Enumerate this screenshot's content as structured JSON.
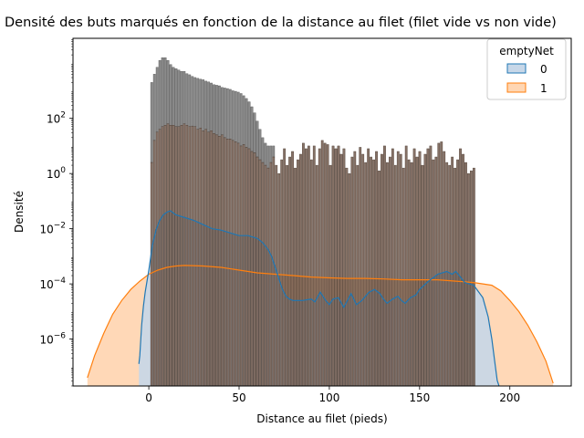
{
  "chart_data": {
    "type": "histogram_kde",
    "title": "Densité des buts marqués en fonction de la distance au filet (filet vide vs non vide)",
    "xlabel": "Distance au filet (pieds)",
    "ylabel": "Densité",
    "y_scale": "log",
    "xlim": [
      -42,
      234
    ],
    "ylim_log10": [
      -7.7,
      4.9
    ],
    "x_ticks": [
      0,
      50,
      100,
      150,
      200
    ],
    "y_ticks": [
      {
        "label": "10",
        "exp": "2",
        "value": 100
      },
      {
        "label": "10",
        "exp": "0",
        "value": 1
      },
      {
        "label": "10",
        "exp": "−2",
        "value": 0.01
      },
      {
        "label": "10",
        "exp": "−4",
        "value": 0.0001
      },
      {
        "label": "10",
        "exp": "−6",
        "value": 1e-06
      }
    ],
    "legend": {
      "title": "emptyNet",
      "placement": "upper right",
      "entries": [
        "0",
        "1"
      ]
    },
    "colors": {
      "series0_fill": "#c7d7e8",
      "series0_line": "#1f77b4",
      "series1_fill": "#ffd6b3",
      "series1_line": "#ff7f0e",
      "hist_combined": "#6b5345",
      "hist_gray": "#8a8a8a"
    },
    "histogram": {
      "bin_start": 1,
      "bin_width": 1.5,
      "emptyNet0_log10": [
        3.3,
        3.6,
        3.85,
        4.1,
        4.2,
        4.2,
        4.1,
        3.95,
        3.85,
        3.8,
        3.75,
        3.7,
        3.7,
        3.62,
        3.58,
        3.52,
        3.48,
        3.45,
        3.42,
        3.4,
        3.35,
        3.32,
        3.28,
        3.22,
        3.2,
        3.18,
        3.12,
        3.1,
        3.08,
        3.05,
        3.0,
        2.98,
        2.95,
        2.9,
        2.82,
        2.72,
        2.6,
        2.42,
        2.2,
        1.9,
        1.6,
        1.3,
        1.1,
        1.0,
        1.0,
        1.0
      ],
      "emptyNet1_log10": [
        0.4,
        1.2,
        1.5,
        1.6,
        1.7,
        1.75,
        1.8,
        1.75,
        1.75,
        1.7,
        1.7,
        1.75,
        1.8,
        1.75,
        1.7,
        1.72,
        1.7,
        1.6,
        1.65,
        1.55,
        1.6,
        1.5,
        1.55,
        1.45,
        1.4,
        1.35,
        1.4,
        1.3,
        1.25,
        1.25,
        1.2,
        1.15,
        1.1,
        1.0,
        1.05,
        0.95,
        0.9,
        0.8,
        0.75,
        0.6,
        0.5,
        0.4,
        0.3,
        0.2,
        0.4,
        0.6,
        0.3,
        0.0,
        0.5,
        0.9,
        0.3,
        0.6,
        0.8,
        0.2,
        0.5,
        0.7,
        1.1,
        0.9,
        1.0,
        0.5,
        1.0,
        0.3,
        0.9,
        1.2,
        1.1,
        1.05,
        0.3,
        1.0,
        0.9,
        1.0,
        0.7,
        0.9,
        0.2,
        0.0,
        0.6,
        0.8,
        0.3,
        0.95,
        0.7,
        0.4,
        0.9,
        0.6,
        0.5,
        0.8,
        0.1,
        0.7,
        1.0,
        0.4,
        0.6,
        0.9,
        0.3,
        0.8,
        0.7,
        0.2,
        1.0,
        0.5,
        0.4,
        0.9,
        0.6,
        0.8,
        0.3,
        0.7,
        0.9,
        1.0,
        0.5,
        0.6,
        1.1,
        1.15,
        0.8,
        0.4,
        0.3,
        0.6,
        0.2,
        0.5,
        0.9,
        0.7,
        0.4,
        0.0,
        0.1,
        0.2
      ]
    },
    "kde": {
      "emptyNet0": {
        "x": [
          -5.5,
          -5,
          -4,
          -3,
          -2,
          -1,
          0,
          2,
          4,
          6,
          8,
          10,
          12,
          15,
          20,
          25,
          30,
          35,
          40,
          45,
          50,
          55,
          60,
          63,
          66,
          68,
          70,
          72,
          74,
          76,
          78,
          80,
          85,
          90,
          92,
          95,
          98,
          100,
          102,
          105,
          108,
          110,
          112,
          115,
          118,
          120,
          122,
          125,
          128,
          130,
          132,
          135,
          138,
          140,
          142,
          145,
          148,
          150,
          155,
          160,
          165,
          168,
          170,
          172,
          175,
          180,
          185,
          188,
          190,
          192,
          193,
          194
        ],
        "log10": [
          -6.9,
          -6.6,
          -5.5,
          -4.8,
          -4.3,
          -3.9,
          -3.5,
          -2.6,
          -2.05,
          -1.7,
          -1.5,
          -1.4,
          -1.35,
          -1.5,
          -1.6,
          -1.7,
          -1.85,
          -2.0,
          -2.05,
          -2.15,
          -2.25,
          -2.25,
          -2.35,
          -2.5,
          -2.75,
          -3.0,
          -3.4,
          -3.8,
          -4.2,
          -4.45,
          -4.55,
          -4.6,
          -4.6,
          -4.55,
          -4.65,
          -4.3,
          -4.6,
          -4.75,
          -4.55,
          -4.5,
          -4.85,
          -4.6,
          -4.35,
          -4.75,
          -4.6,
          -4.45,
          -4.3,
          -4.2,
          -4.35,
          -4.55,
          -4.7,
          -4.55,
          -4.45,
          -4.6,
          -4.7,
          -4.5,
          -4.4,
          -4.2,
          -3.9,
          -3.65,
          -3.55,
          -3.65,
          -3.55,
          -3.7,
          -3.95,
          -4.05,
          -4.5,
          -5.2,
          -6.0,
          -7.0,
          -7.5,
          -7.7
        ]
      },
      "emptyNet1": {
        "x": [
          -34,
          -30,
          -25,
          -20,
          -15,
          -10,
          -5,
          0,
          5,
          10,
          15,
          20,
          30,
          40,
          50,
          60,
          70,
          80,
          90,
          100,
          110,
          120,
          130,
          140,
          150,
          160,
          170,
          180,
          190,
          195,
          200,
          205,
          210,
          215,
          220,
          224
        ],
        "log10": [
          -7.4,
          -6.6,
          -5.8,
          -5.1,
          -4.6,
          -4.2,
          -3.9,
          -3.65,
          -3.5,
          -3.4,
          -3.35,
          -3.33,
          -3.35,
          -3.4,
          -3.5,
          -3.6,
          -3.65,
          -3.7,
          -3.75,
          -3.78,
          -3.8,
          -3.8,
          -3.82,
          -3.85,
          -3.85,
          -3.85,
          -3.9,
          -3.95,
          -4.05,
          -4.25,
          -4.6,
          -5.0,
          -5.5,
          -6.1,
          -6.8,
          -7.6
        ]
      }
    }
  }
}
